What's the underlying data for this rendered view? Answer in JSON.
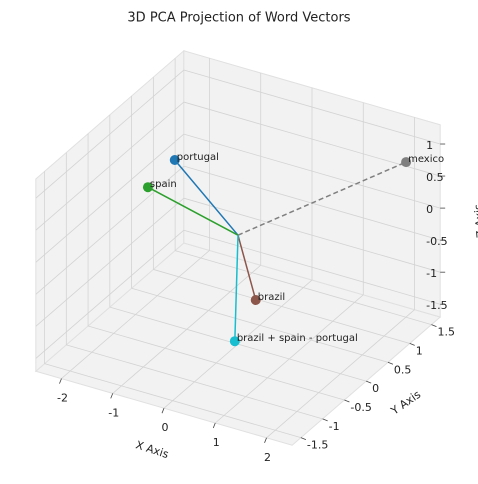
{
  "chart_data": {
    "type": "scatter3d",
    "title": "3D PCA Projection of Word Vectors",
    "xlabel": "X Axis",
    "ylabel": "Y Axis",
    "zlabel": "Z Axis",
    "xlim": [
      -2.5,
      2.5
    ],
    "ylim": [
      -1.7,
      1.7
    ],
    "zlim": [
      -1.7,
      1.3
    ],
    "xticks": [
      -2,
      -1,
      0,
      1,
      2
    ],
    "yticks": [
      -1.5,
      -1.0,
      -0.5,
      0.0,
      0.5,
      1.0,
      1.5
    ],
    "zticks": [
      -1.5,
      -1.0,
      -0.5,
      0.0,
      0.5,
      1.0
    ],
    "grid": true,
    "line_origin": [
      0,
      0,
      0
    ],
    "points": [
      {
        "name": "portugal",
        "color": "#1f77b4",
        "x": -1.87,
        "y": 0.75,
        "z": 0.3,
        "linestyle": "solid"
      },
      {
        "name": "spain",
        "color": "#2ca02c",
        "x": -2.02,
        "y": 0.31,
        "z": 0.1,
        "linestyle": "solid"
      },
      {
        "name": "brazil",
        "color": "#8c564b",
        "x": 0.38,
        "y": -0.04,
        "z": -0.9,
        "linestyle": "solid"
      },
      {
        "name": "mexico",
        "color": "#7f7f7f",
        "x": 2.09,
        "y": 1.4,
        "z": 0.8,
        "linestyle": "dashed"
      },
      {
        "name": "brazil + spain - portugal",
        "color": "#17becf",
        "x": 0.77,
        "y": -0.98,
        "z": -0.9,
        "linestyle": "solid"
      }
    ]
  }
}
